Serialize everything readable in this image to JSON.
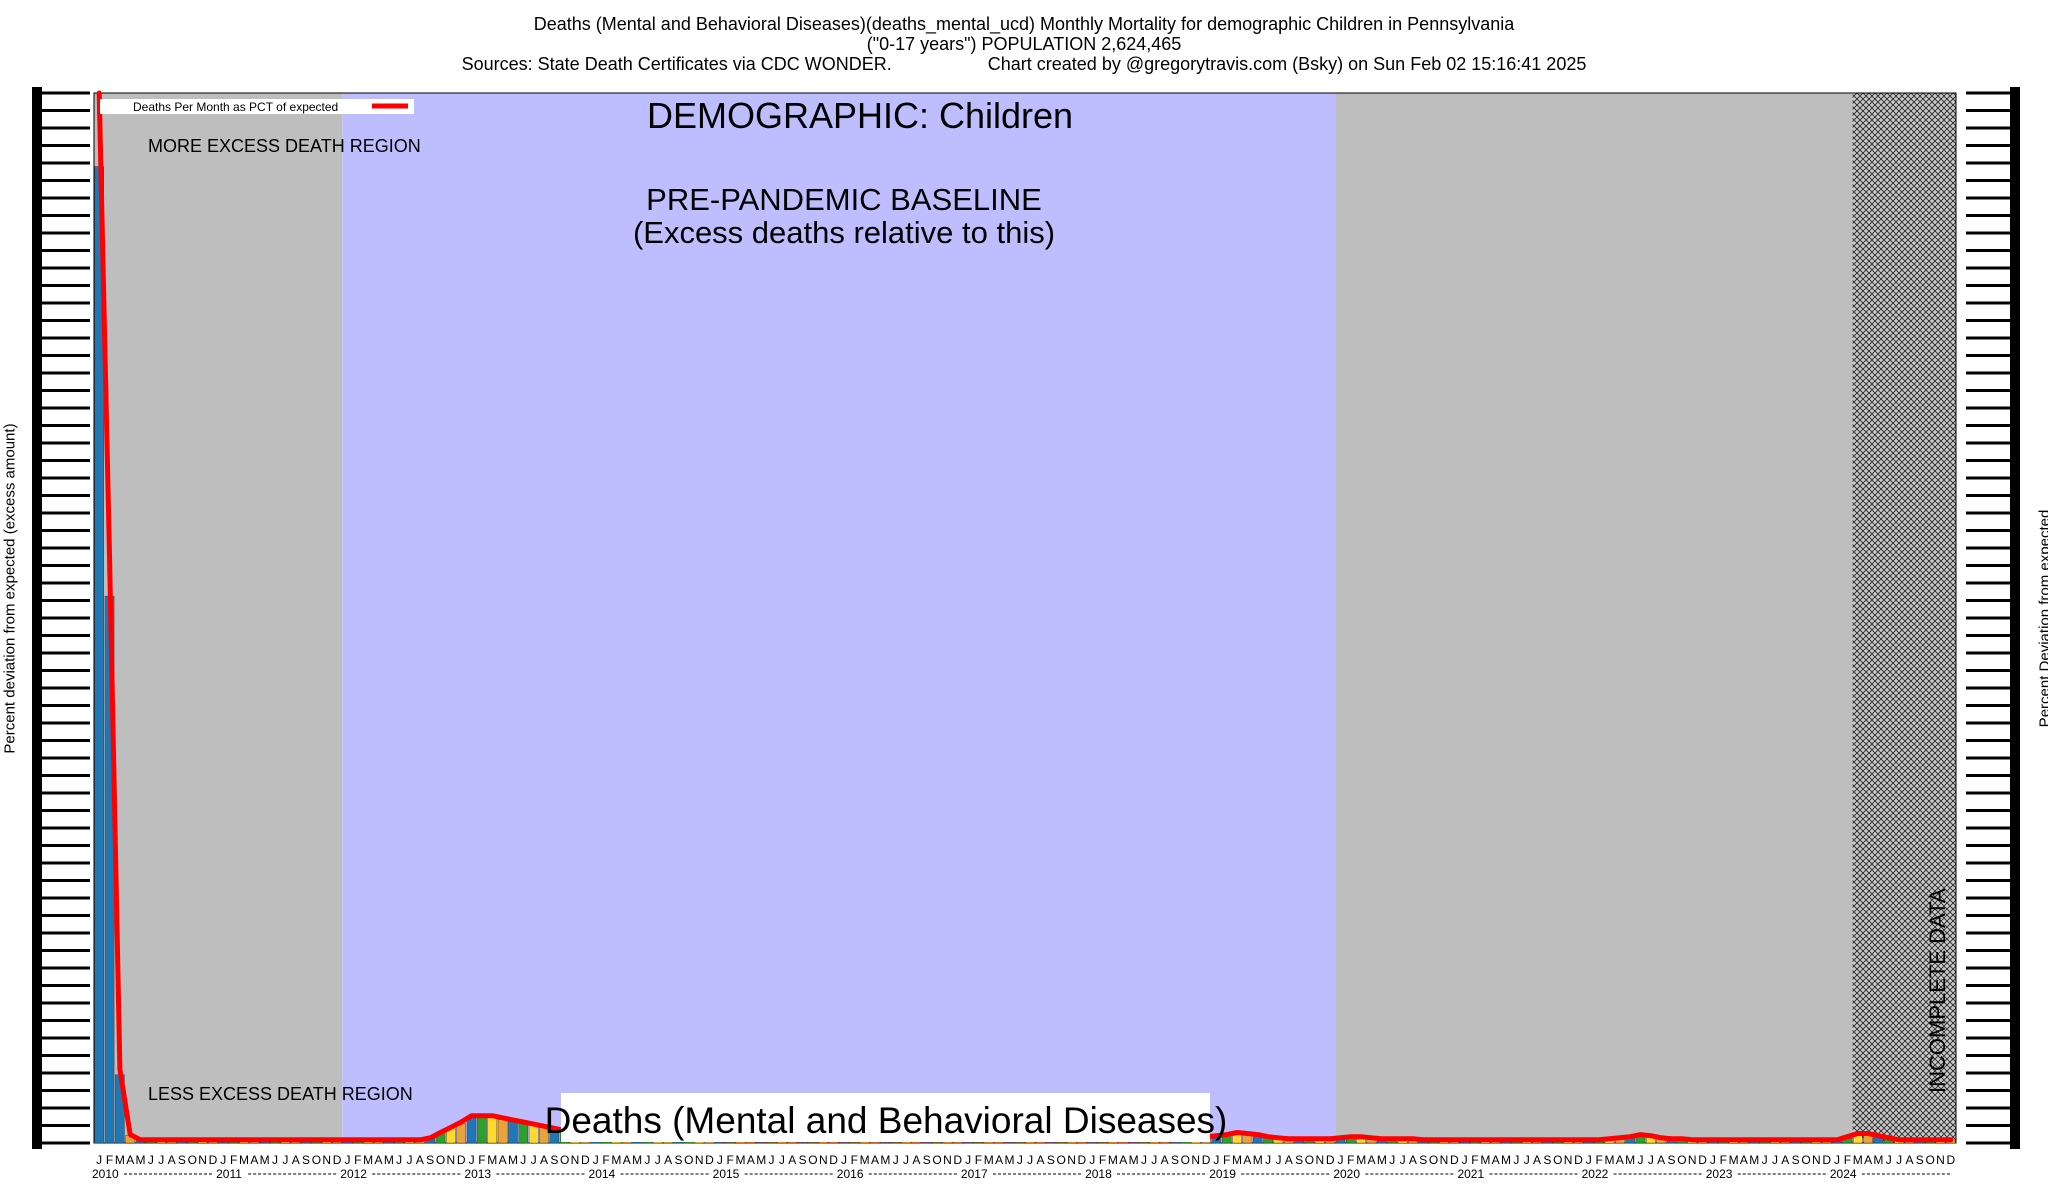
{
  "chart_data": {
    "type": "bar",
    "title": "Deaths (Mental and Behavioral Diseases)(deaths_mental_ucd) Monthly Mortality for demographic Children in Pennsylvania",
    "subtitle": "(\"0-17 years\") POPULATION 2,624,465",
    "sources": "Sources: State Death Certificates via CDC WONDER.",
    "credit": "Chart created by @gregorytravis.com (Bsky) on Sun Feb 02 15:16:41 2025",
    "ylabel_left": "Percent deviation from expected (excess amount)",
    "ylabel_right": "Percent Deviation from expected",
    "legend": "Deaths Per Month as PCT of expected",
    "legend_placement": "top-left",
    "center_label": "Deaths (Mental and Behavioral Diseases)",
    "annotations": {
      "demographic": "DEMOGRAPHIC: Children",
      "baseline_line1": "PRE-PANDEMIC BASELINE",
      "baseline_line2": "(Excess deaths relative to this)",
      "more_excess": "MORE EXCESS DEATH REGION",
      "less_excess": "LESS EXCESS DEATH REGION",
      "incomplete": "INCOMPLETE DATA"
    },
    "month_letters": [
      "J",
      "F",
      "M",
      "A",
      "M",
      "J",
      "J",
      "A",
      "S",
      "O",
      "N",
      "D"
    ],
    "years": [
      "2010",
      "2011",
      "2012",
      "2013",
      "2014",
      "2015",
      "2016",
      "2017",
      "2018",
      "2019",
      "2020",
      "2021",
      "2022",
      "2023",
      "2024"
    ],
    "ylim": [
      0,
      100
    ],
    "regions": [
      {
        "name": "gray",
        "start": "2010-01",
        "end": "2011-12",
        "color": "#bebebe"
      },
      {
        "name": "baseline",
        "start": "2012-01",
        "end": "2019-12",
        "color": "#bebefe"
      },
      {
        "name": "gray",
        "start": "2020-01",
        "end": "2024-02",
        "color": "#bebebe"
      },
      {
        "name": "incomplete",
        "start": "2024-03",
        "end": "2024-12",
        "color": "#c8c8c8"
      }
    ],
    "series": [
      {
        "name": "Deaths Per Month as PCT of expected",
        "color": "#ff0000",
        "values": [
          100,
          56,
          7,
          0.8,
          0.3,
          0.3,
          0.3,
          0.3,
          0.3,
          0.3,
          0.3,
          0.3,
          0.3,
          0.3,
          0.3,
          0.3,
          0.3,
          0.3,
          0.3,
          0.3,
          0.3,
          0.3,
          0.3,
          0.3,
          0.3,
          0.3,
          0.3,
          0.3,
          0.3,
          0.3,
          0.3,
          0.3,
          0.5,
          1.0,
          1.5,
          2.0,
          2.6,
          2.6,
          2.6,
          2.4,
          2.2,
          2.0,
          1.8,
          1.6,
          1.4,
          1.2,
          0.8,
          0.6,
          0.5,
          0.4,
          0.4,
          0.4,
          0.4,
          0.4,
          0.4,
          0.4,
          0.4,
          0.4,
          0.4,
          0.4,
          0.3,
          0.3,
          0.3,
          0.3,
          0.3,
          0.3,
          0.3,
          0.3,
          0.3,
          0.3,
          0.3,
          0.3,
          0.3,
          0.3,
          0.3,
          0.3,
          0.3,
          0.3,
          0.3,
          0.3,
          0.3,
          0.3,
          0.3,
          0.3,
          0.3,
          0.3,
          0.3,
          0.3,
          0.3,
          0.3,
          0.3,
          0.3,
          0.3,
          0.3,
          0.3,
          0.3,
          0.3,
          0.3,
          0.3,
          0.3,
          0.3,
          0.3,
          0.3,
          0.3,
          0.3,
          0.4,
          0.6,
          0.6,
          0.7,
          0.8,
          1.0,
          0.9,
          0.8,
          0.6,
          0.5,
          0.4,
          0.4,
          0.4,
          0.4,
          0.4,
          0.5,
          0.6,
          0.6,
          0.5,
          0.4,
          0.4,
          0.4,
          0.4,
          0.3,
          0.3,
          0.3,
          0.3,
          0.3,
          0.3,
          0.3,
          0.3,
          0.3,
          0.3,
          0.3,
          0.3,
          0.3,
          0.3,
          0.3,
          0.3,
          0.3,
          0.3,
          0.4,
          0.5,
          0.6,
          0.8,
          0.7,
          0.5,
          0.4,
          0.4,
          0.3,
          0.3,
          0.3,
          0.3,
          0.3,
          0.3,
          0.3,
          0.3,
          0.3,
          0.3,
          0.3,
          0.3,
          0.3,
          0.3,
          0.3,
          0.6,
          0.9,
          0.9,
          0.7,
          0.5,
          0.3,
          0.3,
          0.3,
          0.3,
          0.3,
          0.3
        ]
      }
    ]
  }
}
